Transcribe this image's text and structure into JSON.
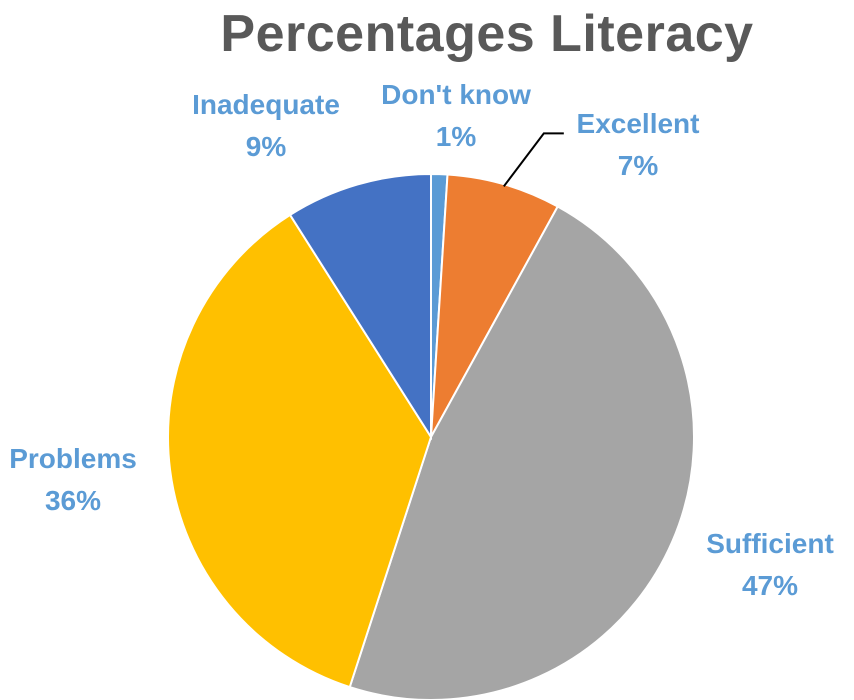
{
  "chart_data": {
    "type": "pie",
    "title": "Percentages Literacy",
    "slices": [
      {
        "label": "Don't know",
        "value": 1,
        "pct_label": "1%",
        "color": "#5b9bd5"
      },
      {
        "label": "Excellent",
        "value": 7,
        "pct_label": "7%",
        "color": "#ed7d31"
      },
      {
        "label": "Sufficient",
        "value": 47,
        "pct_label": "47%",
        "color": "#a5a5a5"
      },
      {
        "label": "Problems",
        "value": 36,
        "pct_label": "36%",
        "color": "#ffc000"
      },
      {
        "label": "Inadequate",
        "value": 9,
        "pct_label": "9%",
        "color": "#4472c4"
      }
    ],
    "label_color": "#5b9bd5",
    "legend": "none",
    "data_labels": "category and percentage, outside"
  }
}
